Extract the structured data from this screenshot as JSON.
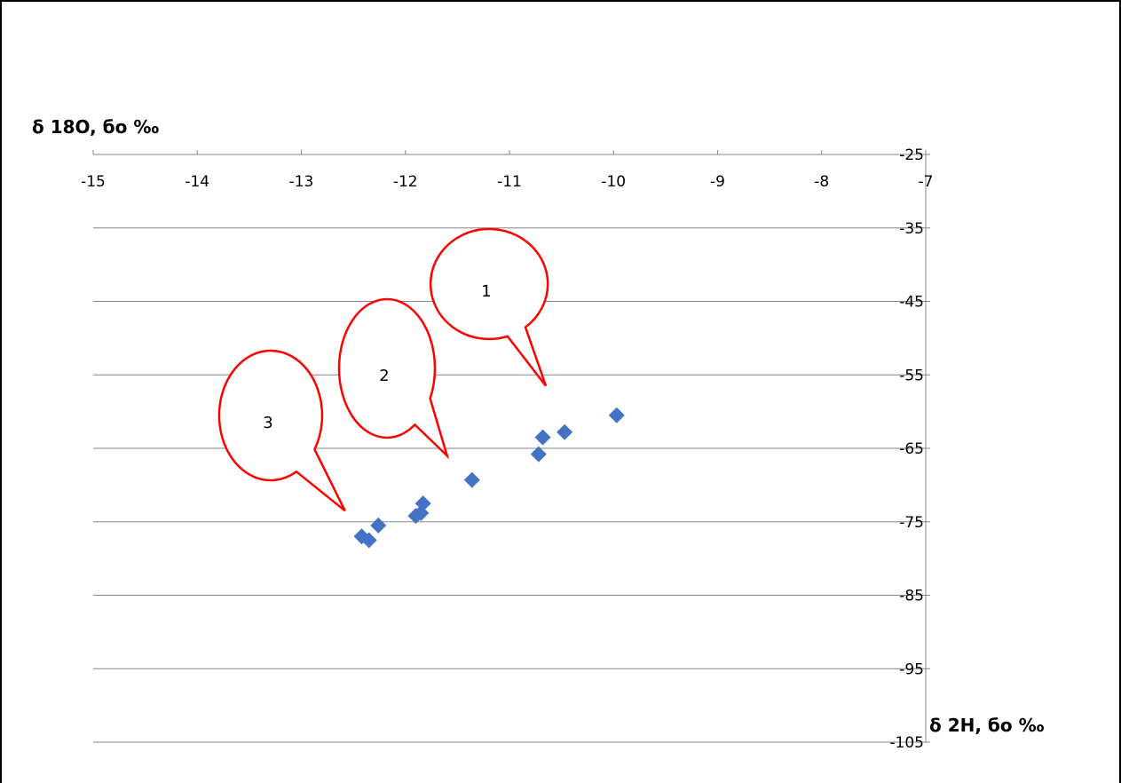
{
  "chart_data": {
    "type": "scatter",
    "title": "",
    "ylabel": "δ 18O, бо ‰",
    "xlabel": "δ 2H, бо ‰",
    "xlim": [
      -15,
      -7
    ],
    "ylim": [
      -105,
      -25
    ],
    "x_ticks": [
      -15,
      -14,
      -13,
      -12,
      -11,
      -10,
      -9,
      -8,
      -7
    ],
    "x_tick_labels": [
      "-15",
      "-14",
      "-13",
      "-12",
      "-11",
      "-10",
      "-9",
      "-8",
      "-7"
    ],
    "y_ticks": [
      -25,
      -35,
      -45,
      -55,
      -65,
      -75,
      -85,
      -95,
      -105
    ],
    "y_tick_labels": [
      "-25",
      "-35",
      "-45",
      "-55",
      "-65",
      "-75",
      "-85",
      "-95",
      "-105"
    ],
    "x_axis_position": "top",
    "y_axis_position": "right",
    "grid": true,
    "marker": "diamond",
    "marker_color": "#4472c4",
    "series": [
      {
        "points": [
          [
            -12.42,
            -77.0
          ],
          [
            -12.35,
            -77.5
          ],
          [
            -12.26,
            -75.5
          ],
          [
            -11.9,
            -74.2
          ],
          [
            -11.85,
            -73.8
          ],
          [
            -11.83,
            -72.5
          ],
          [
            -11.36,
            -69.3
          ],
          [
            -10.72,
            -65.8
          ],
          [
            -10.68,
            -63.5
          ],
          [
            -10.47,
            -62.8
          ],
          [
            -9.97,
            -60.5
          ]
        ]
      }
    ],
    "callouts": [
      {
        "label": "1",
        "target": [
          -10.65,
          -56.5
        ]
      },
      {
        "label": "2",
        "target": [
          -11.6,
          -66.0
        ]
      },
      {
        "label": "3",
        "target": [
          -12.58,
          -73.5
        ]
      }
    ],
    "callout_color": "#ff0000"
  }
}
